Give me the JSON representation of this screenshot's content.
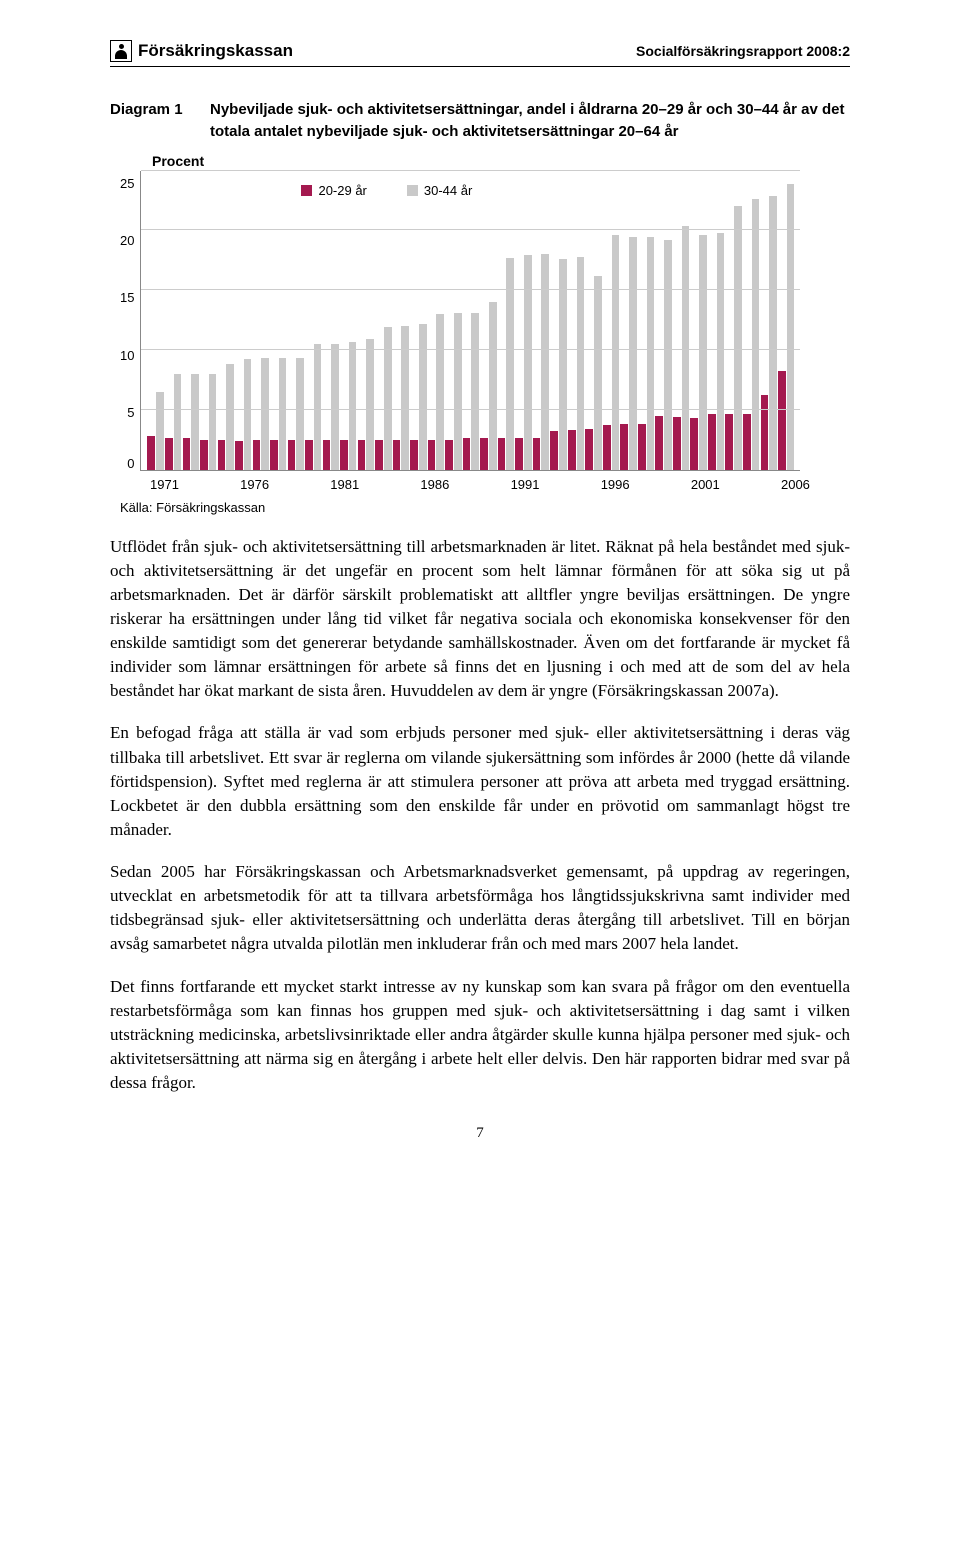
{
  "header": {
    "logo_text": "Försäkringskassan",
    "right": "Socialförsäkringsrapport 2008:2"
  },
  "diagram": {
    "number": "Diagram 1",
    "title": "Nybeviljade sjuk- och aktivitetsersättningar, andel i åldrarna 20–29 år och 30–44 år av det totala antalet nybeviljade sjuk- och aktivitetsersättningar 20–64 år",
    "y_label": "Procent",
    "source": "Källa: Försäkringskassan",
    "chart": {
      "type": "bar",
      "ylim": [
        0,
        25
      ],
      "ytick_step": 5,
      "yticks": [
        "25",
        "20",
        "15",
        "10",
        "5",
        "0"
      ],
      "x_major": [
        "1971",
        "1976",
        "1981",
        "1986",
        "1991",
        "1996",
        "2001",
        "2006"
      ],
      "series": [
        {
          "name": "20-29 år",
          "color": "#a4194f"
        },
        {
          "name": "30-44 år",
          "color": "#c9c9c9"
        }
      ],
      "background_color": "#ffffff",
      "grid_color": "#cccccc",
      "years": [
        1971,
        1972,
        1973,
        1974,
        1975,
        1976,
        1977,
        1978,
        1979,
        1980,
        1981,
        1982,
        1983,
        1984,
        1985,
        1986,
        1987,
        1988,
        1989,
        1990,
        1991,
        1992,
        1993,
        1994,
        1995,
        1996,
        1997,
        1998,
        1999,
        2000,
        2001,
        2002,
        2003,
        2004,
        2005,
        2006,
        2007
      ],
      "v_20_29": [
        2.8,
        2.6,
        2.6,
        2.5,
        2.5,
        2.4,
        2.5,
        2.5,
        2.5,
        2.5,
        2.5,
        2.5,
        2.5,
        2.5,
        2.5,
        2.5,
        2.5,
        2.5,
        2.6,
        2.6,
        2.6,
        2.6,
        2.6,
        3.2,
        3.3,
        3.4,
        3.7,
        3.8,
        3.8,
        4.5,
        4.4,
        4.3,
        4.6,
        4.6,
        4.6,
        6.2,
        8.2
      ],
      "v_30_44": [
        6.5,
        8.0,
        8.0,
        8.0,
        8.8,
        9.2,
        9.3,
        9.3,
        9.3,
        10.5,
        10.5,
        10.7,
        10.9,
        11.9,
        12.0,
        12.2,
        13.0,
        13.1,
        13.1,
        14.0,
        17.7,
        17.9,
        18.0,
        17.6,
        17.8,
        16.2,
        19.6,
        19.4,
        19.4,
        19.2,
        20.4,
        19.6,
        19.8,
        22.0,
        22.6,
        22.9,
        23.9
      ]
    }
  },
  "body": {
    "p1": "Utflödet från sjuk- och aktivitetsersättning till arbetsmarknaden är litet. Räknat på hela beståndet med sjuk- och aktivitetsersättning är det ungefär en procent som helt lämnar förmånen för att söka sig ut på arbetsmarknaden. Det är därför särskilt problematiskt att alltfler yngre beviljas ersättningen. De yngre riskerar ha ersättningen under lång tid vilket får negativa sociala och ekonomiska konsekvenser för den enskilde samtidigt som det genererar betydande samhällskostnader. Även om det fortfarande är mycket få individer som lämnar ersättningen för arbete så finns det en ljusning i och med att de som del av hela beståndet har ökat markant de sista åren. Huvuddelen av dem är yngre (Försäkringskassan 2007a).",
    "p2": "En befogad fråga att ställa är vad som erbjuds personer med sjuk- eller aktivitetsersättning i deras väg tillbaka till arbetslivet. Ett svar är reglerna om vilande sjukersättning som infördes år 2000 (hette då vilande förtidspension). Syftet med reglerna är att stimulera personer att pröva att arbeta med tryggad ersättning. Lockbetet är den dubbla ersättning som den enskilde får under en prövotid om sammanlagt högst tre månader.",
    "p3": "Sedan 2005 har Försäkringskassan och Arbetsmarknadsverket gemensamt, på uppdrag av regeringen, utvecklat en arbetsmetodik för att ta tillvara arbetsförmåga hos långtidssjukskrivna samt individer med tidsbegränsad sjuk- eller aktivitetsersättning och underlätta deras återgång till arbetslivet. Till en början avsåg samarbetet några utvalda pilotlän men inkluderar från och med mars 2007 hela landet.",
    "p4": "Det finns fortfarande ett mycket starkt intresse av ny kunskap som kan svara på frågor om den eventuella restarbetsförmåga som kan finnas hos gruppen med sjuk- och aktivitetsersättning i dag samt i vilken utsträckning medicinska, arbetslivsinriktade eller andra åtgärder skulle kunna hjälpa personer med sjuk- och aktivitetsersättning att närma sig en återgång i arbete helt eller delvis. Den här rapporten bidrar med svar på dessa frågor."
  },
  "page_number": "7"
}
